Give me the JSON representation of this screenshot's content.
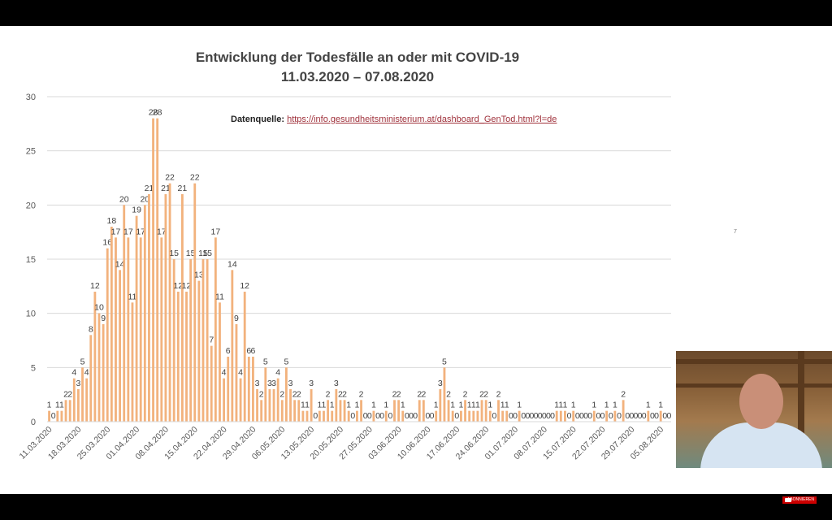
{
  "title_line1": "Entwicklung der Todesfälle an oder mit COVID-19",
  "title_line2": "11.03.2020 – 07.08.2020",
  "source_label": "Datenquelle:",
  "source_url": "https://info.gesundheitsministerium.at/dashboard_GenTod.html?l=de",
  "page_number": "7",
  "youtube_badge": "ABONNIEREN",
  "colors": {
    "bar": "#f2b27d",
    "grid": "#d9d9d9",
    "axis_text": "#595959",
    "label_text": "#404040"
  },
  "chart_data": {
    "type": "bar",
    "title": "Entwicklung der Todesfälle an oder mit COVID-19",
    "subtitle": "11.03.2020 – 07.08.2020",
    "xlabel": "",
    "ylabel": "",
    "ylim": [
      0,
      30
    ],
    "yticks": [
      0,
      5,
      10,
      15,
      20,
      25,
      30
    ],
    "grid": true,
    "legend": "none",
    "x_tick_labels": [
      "11.03.2020",
      "18.03.2020",
      "25.03.2020",
      "01.04.2020",
      "08.04.2020",
      "15.04.2020",
      "22.04.2020",
      "29.04.2020",
      "06.05.2020",
      "13.05.2020",
      "20.05.2020",
      "27.05.2020",
      "03.06.2020",
      "10.06.2020",
      "17.06.2020",
      "24.06.2020",
      "01.07.2020",
      "08.07.2020",
      "15.07.2020",
      "22.07.2020",
      "29.07.2020",
      "05.08.2020"
    ],
    "start_date": "11.03.2020",
    "end_date": "07.08.2020",
    "values": [
      1,
      0,
      1,
      1,
      2,
      2,
      4,
      3,
      5,
      4,
      8,
      12,
      10,
      9,
      16,
      18,
      17,
      14,
      20,
      17,
      11,
      19,
      17,
      20,
      21,
      28,
      28,
      17,
      21,
      22,
      15,
      12,
      21,
      12,
      15,
      22,
      13,
      15,
      15,
      7,
      17,
      11,
      4,
      6,
      14,
      9,
      4,
      12,
      6,
      6,
      3,
      2,
      5,
      3,
      3,
      4,
      2,
      5,
      3,
      2,
      2,
      1,
      1,
      3,
      0,
      1,
      1,
      2,
      1,
      3,
      2,
      2,
      1,
      0,
      1,
      2,
      0,
      0,
      1,
      0,
      0,
      1,
      0,
      2,
      2,
      1,
      0,
      0,
      0,
      2,
      2,
      0,
      0,
      1,
      3,
      5,
      2,
      1,
      0,
      1,
      2,
      1,
      1,
      1,
      2,
      2,
      1,
      0,
      2,
      1,
      1,
      0,
      0,
      1,
      0,
      0,
      0,
      0,
      0,
      0,
      0,
      0,
      1,
      1,
      1,
      0,
      1,
      0,
      0,
      0,
      0,
      1,
      0,
      0,
      1,
      0,
      1,
      0,
      2,
      0,
      0,
      0,
      0,
      0,
      1,
      0,
      0,
      1,
      0,
      0
    ]
  }
}
